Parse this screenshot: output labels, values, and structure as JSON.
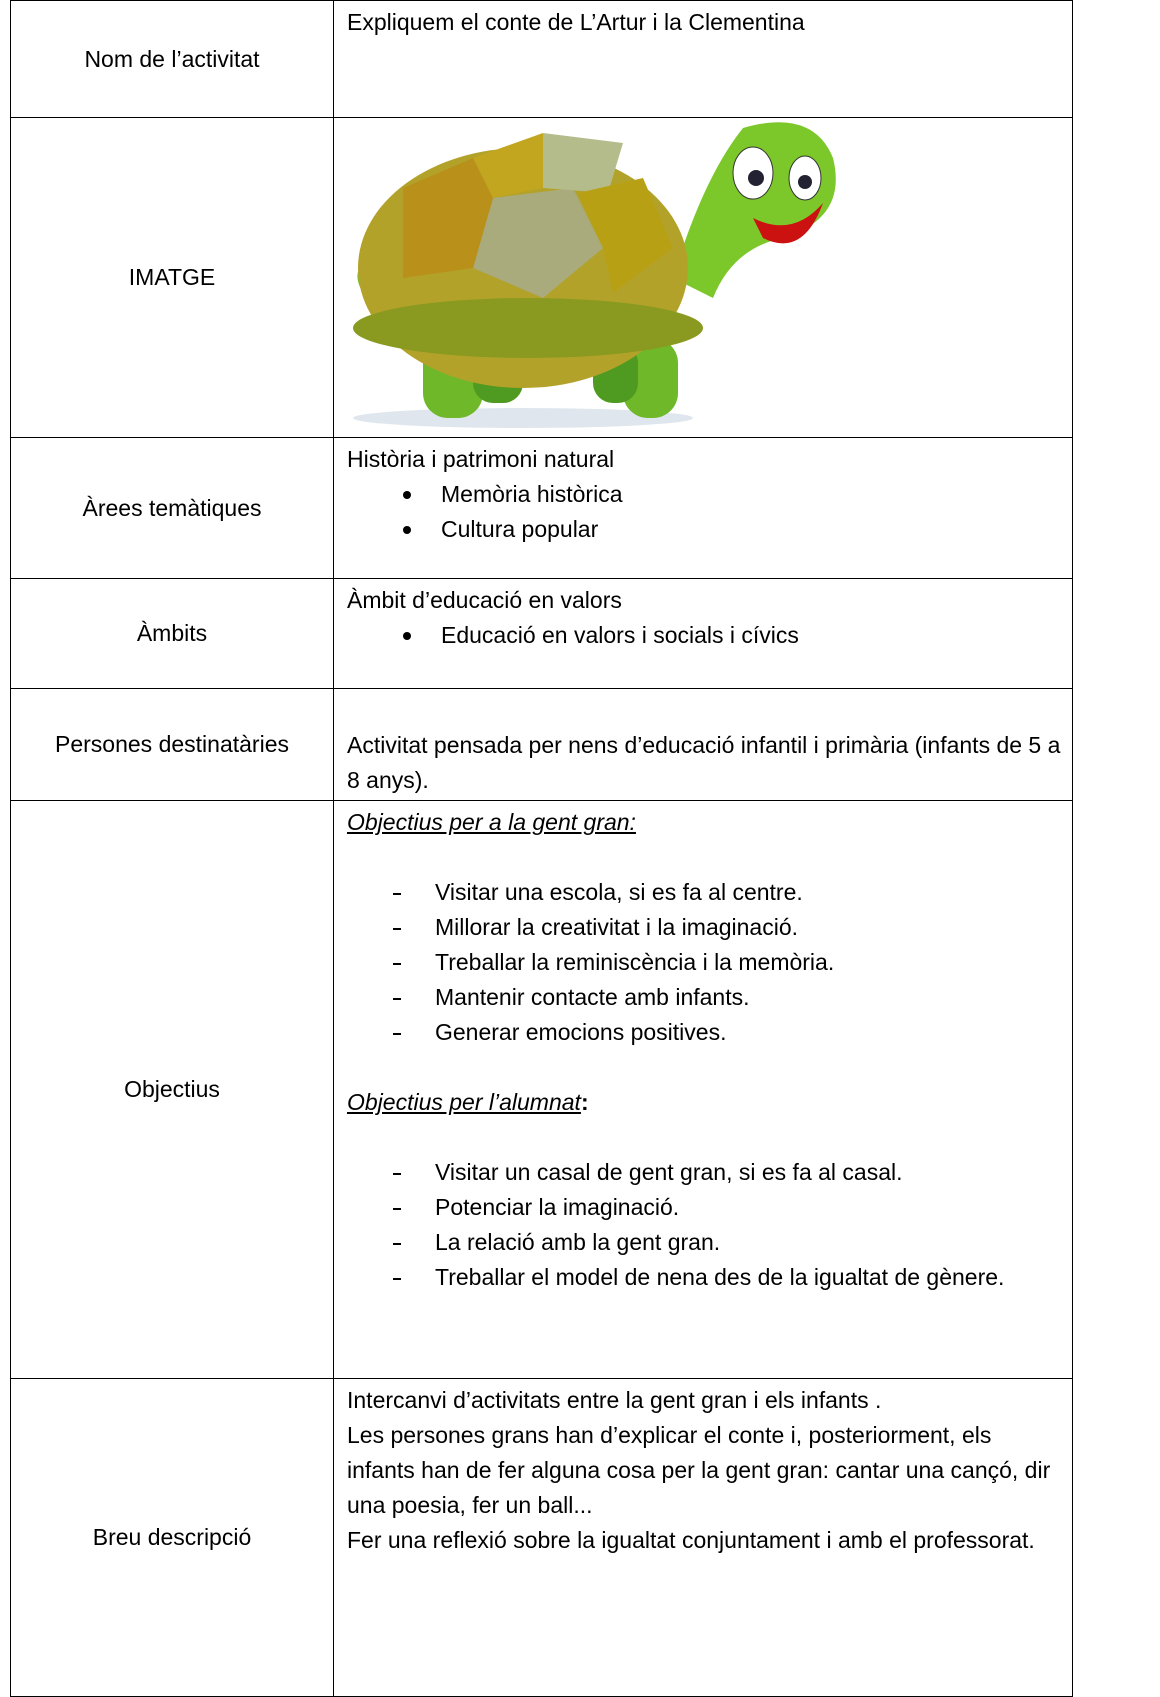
{
  "table": {
    "rows": [
      {
        "label": "Nom de l’activitat",
        "text": "Expliquem el conte de L’Artur i la Clementina"
      },
      {
        "label": "IMATGE"
      },
      {
        "label": "Àrees temàtiques",
        "heading": "Història i patrimoni natural",
        "bullets": [
          "Memòria històrica",
          "Cultura popular"
        ]
      },
      {
        "label": "Àmbits",
        "heading": "Àmbit d’educació en valors",
        "bullets": [
          "Educació en valors i socials i cívics"
        ]
      },
      {
        "label": "Persones destinatàries",
        "text": "Activitat  pensada per nens d’educació infantil i primària (infants de 5 a 8 anys)."
      },
      {
        "label": "Objectius",
        "sections": [
          {
            "heading": "Objectius per a la gent gran:",
            "items": [
              "Visitar una escola, si es fa al centre.",
              "Millorar la creativitat i la imaginació.",
              "Treballar la reminiscència i la memòria.",
              "Mantenir contacte amb infants.",
              "Generar emocions positives."
            ]
          },
          {
            "heading": "Objectius per l’alumnat",
            "suffix": ":",
            "items": [
              "Visitar un casal de gent gran, si es fa al casal.",
              "Potenciar la imaginació.",
              "La relació amb la gent gran.",
              "Treballar el model de nena des de la igualtat de gènere."
            ]
          }
        ]
      },
      {
        "label": "Breu descripció",
        "paragraphs": [
          "Intercanvi d’activitats entre la gent gran i els infants .",
          "Les persones grans han d’explicar el conte i, posteriorment, els infants han de fer alguna cosa per la gent gran: cantar una cançó, dir una poesia, fer un ball...",
          "Fer una reflexió sobre la igualtat conjuntament i amb el professorat."
        ]
      }
    ]
  }
}
